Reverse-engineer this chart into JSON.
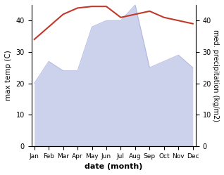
{
  "months": [
    "Jan",
    "Feb",
    "Mar",
    "Apr",
    "May",
    "Jun",
    "Jul",
    "Aug",
    "Sep",
    "Oct",
    "Nov",
    "Dec"
  ],
  "temperature": [
    34,
    38,
    42,
    44,
    44.5,
    44.5,
    41,
    42,
    43,
    41,
    40,
    39
  ],
  "precipitation": [
    20,
    27,
    24,
    24,
    38,
    40,
    40,
    45,
    25,
    27,
    29,
    25
  ],
  "temp_color": "#c0392b",
  "precip_color_fill": "#c5cae9",
  "precip_color_line": "#9fa8da",
  "xlabel": "date (month)",
  "ylabel_left": "max temp (C)",
  "ylabel_right": "med. precipitation (kg/m2)",
  "ylim": [
    0,
    45
  ],
  "yticks": [
    0,
    10,
    20,
    30,
    40
  ],
  "bg_color": "#ffffff"
}
